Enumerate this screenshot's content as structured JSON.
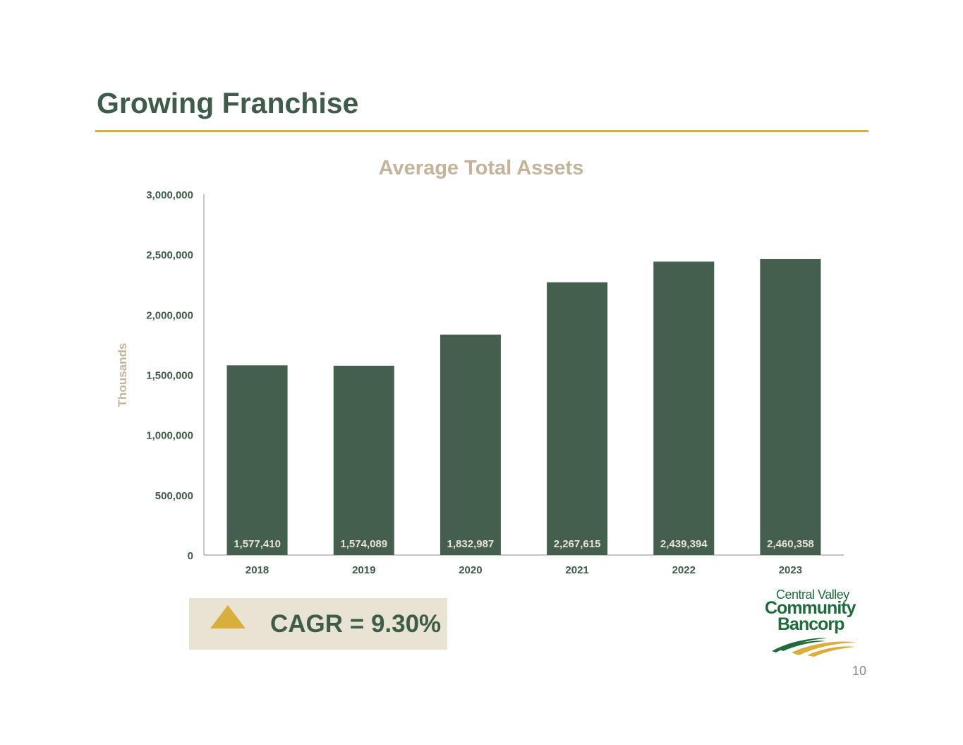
{
  "slide": {
    "title": "Growing Franchise",
    "page_number": "10"
  },
  "colors": {
    "title": "#3f5c48",
    "rule": "#d9ae3b",
    "bar": "#445f4e",
    "chart_title": "#c4b59a",
    "axis_label": "#c4b59a",
    "cagr_box": "#e9e3d3",
    "logo_green": "#1f6b3c"
  },
  "chart_data": {
    "type": "bar",
    "title": "Average Total Assets",
    "ylabel": "Thousands",
    "xlabel": "",
    "categories": [
      "2018",
      "2019",
      "2020",
      "2021",
      "2022",
      "2023"
    ],
    "values": [
      1577410,
      1574089,
      1832987,
      2267615,
      2439394,
      2460358
    ],
    "data_labels": [
      "1,577,410",
      "1,574,089",
      "1,832,987",
      "2,267,615",
      "2,439,394",
      "2,460,358"
    ],
    "ylim": [
      0,
      3000000
    ],
    "y_ticks": [
      0,
      500000,
      1000000,
      1500000,
      2000000,
      2500000,
      3000000
    ],
    "y_tick_labels": [
      "0",
      "500,000",
      "1,000,000",
      "1,500,000",
      "2,000,000",
      "2,500,000",
      "3,000,000"
    ],
    "grid": false,
    "legend": "none"
  },
  "cagr": {
    "text": "CAGR = 9.30%",
    "icon": "up-triangle-icon"
  },
  "logo": {
    "line1": "Central Valley",
    "line2": "Community",
    "line3": "Bancorp"
  }
}
